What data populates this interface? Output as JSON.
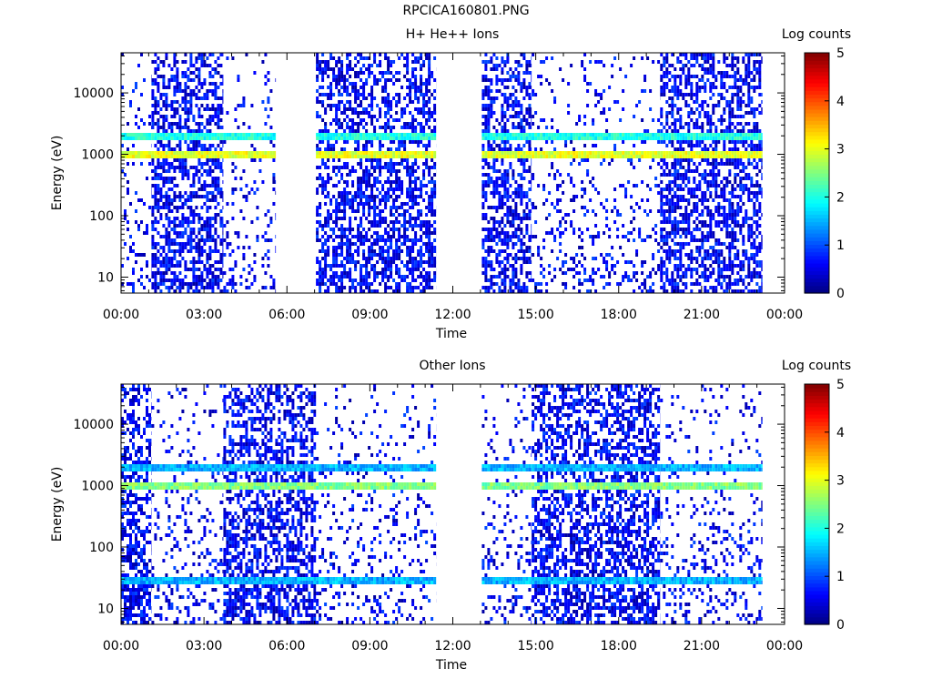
{
  "title": "RPCICA160801.PNG",
  "chart_data": [
    {
      "type": "heatmap",
      "title": "H+ He++ Ions",
      "xlabel": "Time",
      "ylabel": "Energy (eV)",
      "x_ticks": [
        "00:00",
        "03:00",
        "06:00",
        "09:00",
        "12:00",
        "15:00",
        "18:00",
        "21:00",
        "00:00"
      ],
      "xlim_hours": [
        0,
        24
      ],
      "y_ticks": [
        "10",
        "100",
        "1000",
        "10000"
      ],
      "y_tick_values": [
        10,
        100,
        1000,
        10000
      ],
      "ylim": [
        5.5,
        45000
      ],
      "y_scale": "log",
      "colorbar": {
        "label": "Log counts",
        "ticks": [
          "0",
          "1",
          "2",
          "3",
          "4",
          "5"
        ],
        "range": [
          0,
          5
        ]
      },
      "segments": [
        {
          "start": 0.0,
          "end": 1.1,
          "kind": "sparse"
        },
        {
          "start": 1.1,
          "end": 3.7,
          "kind": "dense"
        },
        {
          "start": 3.7,
          "end": 5.6,
          "kind": "sparse"
        },
        {
          "start": 5.6,
          "end": 7.05,
          "kind": "gap"
        },
        {
          "start": 7.05,
          "end": 11.4,
          "kind": "dense"
        },
        {
          "start": 11.4,
          "end": 13.05,
          "kind": "gap"
        },
        {
          "start": 13.05,
          "end": 14.85,
          "kind": "dense"
        },
        {
          "start": 14.85,
          "end": 19.5,
          "kind": "sparse"
        },
        {
          "start": 19.5,
          "end": 23.2,
          "kind": "dense"
        }
      ],
      "bands": [
        {
          "energy_ev": 1000,
          "log_counts": 3.0
        },
        {
          "energy_ev": 2000,
          "log_counts": 2.0
        }
      ]
    },
    {
      "type": "heatmap",
      "title": "Other Ions",
      "xlabel": "Time",
      "ylabel": "Energy (eV)",
      "x_ticks": [
        "00:00",
        "03:00",
        "06:00",
        "09:00",
        "12:00",
        "15:00",
        "18:00",
        "21:00",
        "00:00"
      ],
      "xlim_hours": [
        0,
        24
      ],
      "y_ticks": [
        "10",
        "100",
        "1000",
        "10000"
      ],
      "y_tick_values": [
        10,
        100,
        1000,
        10000
      ],
      "ylim": [
        5.5,
        45000
      ],
      "y_scale": "log",
      "colorbar": {
        "label": "Log counts",
        "ticks": [
          "0",
          "1",
          "2",
          "3",
          "4",
          "5"
        ],
        "range": [
          0,
          5
        ]
      },
      "segments": [
        {
          "start": 0.0,
          "end": 1.1,
          "kind": "dense"
        },
        {
          "start": 1.1,
          "end": 3.7,
          "kind": "sparse"
        },
        {
          "start": 3.7,
          "end": 7.05,
          "kind": "dense"
        },
        {
          "start": 7.05,
          "end": 11.4,
          "kind": "sparse"
        },
        {
          "start": 11.4,
          "end": 13.05,
          "kind": "gap"
        },
        {
          "start": 13.05,
          "end": 14.85,
          "kind": "sparse"
        },
        {
          "start": 14.85,
          "end": 19.5,
          "kind": "dense"
        },
        {
          "start": 19.5,
          "end": 23.2,
          "kind": "sparse"
        }
      ],
      "bands": [
        {
          "energy_ev": 1000,
          "log_counts": 2.5
        },
        {
          "energy_ev": 2000,
          "log_counts": 1.5
        },
        {
          "energy_ev": 30,
          "log_counts": 1.5
        }
      ]
    }
  ]
}
